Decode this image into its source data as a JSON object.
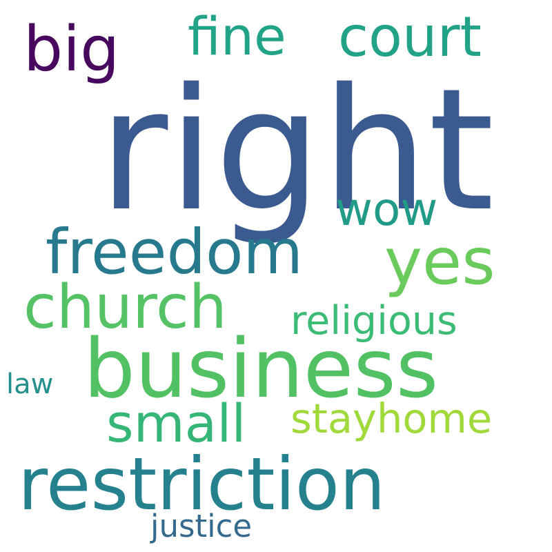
{
  "words": {
    "right": {
      "text": "right",
      "color": "#3b5a8f"
    },
    "business": {
      "text": "business",
      "color": "#52c164"
    },
    "restriction": {
      "text": "restriction",
      "color": "#26818e"
    },
    "freedom": {
      "text": "freedom",
      "color": "#27798d"
    },
    "yes": {
      "text": "yes",
      "color": "#6acb5c"
    },
    "church": {
      "text": "church",
      "color": "#55c265"
    },
    "court": {
      "text": "court",
      "color": "#22a286"
    },
    "big": {
      "text": "big",
      "color": "#47085e"
    },
    "fine": {
      "text": "fine",
      "color": "#21a387"
    },
    "wow": {
      "text": "wow",
      "color": "#1f9b88"
    },
    "small": {
      "text": "small",
      "color": "#35b676"
    },
    "stayhome": {
      "text": "stayhome",
      "color": "#a0d93a"
    },
    "religious": {
      "text": "religious",
      "color": "#3bbb73"
    },
    "law": {
      "text": "law",
      "color": "#23908c"
    },
    "justice": {
      "text": "justice",
      "color": "#336a8d"
    }
  }
}
